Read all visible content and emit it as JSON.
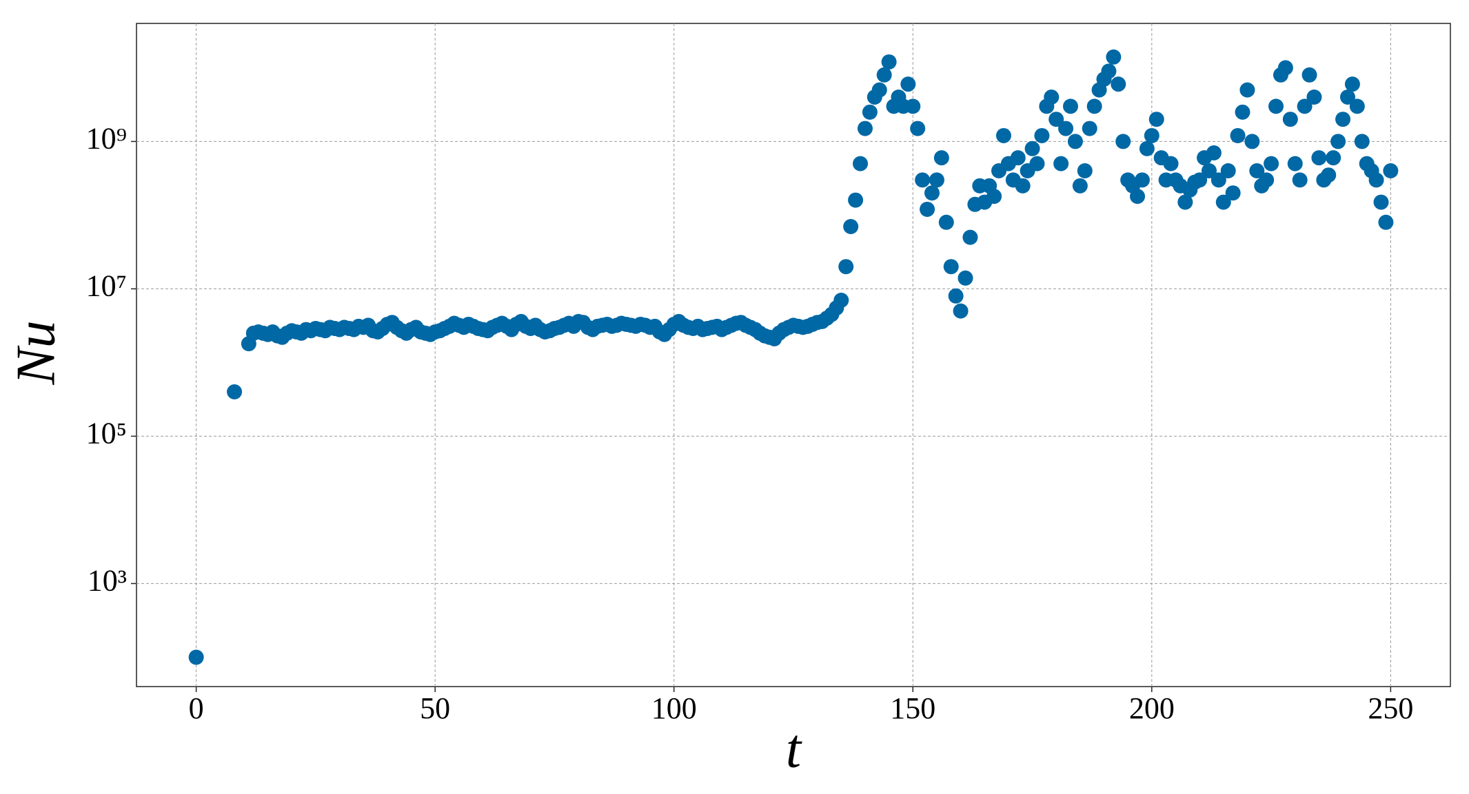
{
  "chart_data": {
    "type": "scatter",
    "x_label": "t",
    "y_label": "Nu",
    "color": "#0068a5",
    "y_scale": "log",
    "grid": true,
    "xlim": [
      -12.5,
      262.5
    ],
    "xticks": [
      0,
      50,
      100,
      150,
      200,
      250
    ],
    "ylim": [
      40,
      40000000000.0
    ],
    "yticks": [
      {
        "value": 1000,
        "label": "10³"
      },
      {
        "value": 100000,
        "label": "10⁵"
      },
      {
        "value": 10000000,
        "label": "10⁷"
      },
      {
        "value": 1000000000,
        "label": "10⁹"
      }
    ],
    "x": [
      0,
      8,
      11,
      12,
      13,
      14,
      15,
      16,
      17,
      18,
      19,
      20,
      21,
      22,
      23,
      24,
      25,
      26,
      27,
      28,
      29,
      30,
      31,
      32,
      33,
      34,
      35,
      36,
      37,
      38,
      39,
      40,
      41,
      42,
      43,
      44,
      45,
      46,
      47,
      48,
      49,
      50,
      51,
      52,
      53,
      54,
      55,
      56,
      57,
      58,
      59,
      60,
      61,
      62,
      63,
      64,
      65,
      66,
      67,
      68,
      69,
      70,
      71,
      72,
      73,
      74,
      75,
      76,
      77,
      78,
      79,
      80,
      81,
      82,
      83,
      84,
      85,
      86,
      87,
      88,
      89,
      90,
      91,
      92,
      93,
      94,
      95,
      96,
      97,
      98,
      99,
      100,
      101,
      102,
      103,
      104,
      105,
      106,
      107,
      108,
      109,
      110,
      111,
      112,
      113,
      114,
      115,
      116,
      117,
      118,
      119,
      120,
      121,
      122,
      123,
      124,
      125,
      126,
      127,
      128,
      129,
      130,
      131,
      132,
      133,
      134,
      135,
      136,
      137,
      138,
      139,
      140,
      141,
      142,
      143,
      144,
      145,
      146,
      147,
      148,
      149,
      150,
      151,
      152,
      153,
      154,
      155,
      156,
      157,
      158,
      159,
      160,
      161,
      162,
      163,
      164,
      165,
      166,
      167,
      168,
      169,
      170,
      171,
      172,
      173,
      174,
      175,
      176,
      177,
      178,
      179,
      180,
      181,
      182,
      183,
      184,
      185,
      186,
      187,
      188,
      189,
      190,
      191,
      192,
      193,
      194,
      195,
      196,
      197,
      198,
      199,
      200,
      201,
      202,
      203,
      204,
      205,
      206,
      207,
      208,
      209,
      210,
      211,
      212,
      213,
      214,
      215,
      216,
      217,
      218,
      219,
      220,
      221,
      222,
      223,
      224,
      225,
      226,
      227,
      228,
      229,
      230,
      231,
      232,
      233,
      234,
      235,
      236,
      237,
      238,
      239,
      240,
      241,
      242,
      243,
      244,
      245,
      246,
      247,
      248,
      249,
      250
    ],
    "values": [
      100,
      400000.0,
      1800000.0,
      2500000.0,
      2600000.0,
      2500000.0,
      2400000.0,
      2600000.0,
      2300000.0,
      2200000.0,
      2500000.0,
      2700000.0,
      2600000.0,
      2500000.0,
      2800000.0,
      2700000.0,
      2900000.0,
      2800000.0,
      2700000.0,
      3000000.0,
      2900000.0,
      2800000.0,
      3000000.0,
      2900000.0,
      2800000.0,
      3100000.0,
      3000000.0,
      3200000.0,
      2700000.0,
      2600000.0,
      2900000.0,
      3300000.0,
      3500000.0,
      3000000.0,
      2700000.0,
      2500000.0,
      2800000.0,
      3000000.0,
      2600000.0,
      2500000.0,
      2400000.0,
      2600000.0,
      2700000.0,
      2900000.0,
      3100000.0,
      3400000.0,
      3200000.0,
      3000000.0,
      3300000.0,
      3100000.0,
      2900000.0,
      2800000.0,
      2700000.0,
      3000000.0,
      3200000.0,
      3400000.0,
      3100000.0,
      2800000.0,
      3300000.0,
      3600000.0,
      3100000.0,
      2900000.0,
      3200000.0,
      2800000.0,
      2600000.0,
      2700000.0,
      2900000.0,
      3000000.0,
      3200000.0,
      3400000.0,
      3100000.0,
      3600000.0,
      3500000.0,
      3000000.0,
      2800000.0,
      3100000.0,
      3200000.0,
      3300000.0,
      3100000.0,
      3200000.0,
      3400000.0,
      3300000.0,
      3200000.0,
      3100000.0,
      3300000.0,
      3200000.0,
      3000000.0,
      3100000.0,
      2600000.0,
      2400000.0,
      2800000.0,
      3300000.0,
      3600000.0,
      3200000.0,
      3000000.0,
      2900000.0,
      3100000.0,
      2800000.0,
      2900000.0,
      3000000.0,
      3100000.0,
      2800000.0,
      3000000.0,
      3200000.0,
      3400000.0,
      3500000.0,
      3200000.0,
      3000000.0,
      2800000.0,
      2500000.0,
      2300000.0,
      2200000.0,
      2100000.0,
      2500000.0,
      2800000.0,
      3000000.0,
      3200000.0,
      3100000.0,
      3000000.0,
      3100000.0,
      3300000.0,
      3500000.0,
      3600000.0,
      4000000.0,
      4500000.0,
      5500000.0,
      7000000.0,
      20000000.0,
      70000000.0,
      160000000.0,
      500000000.0,
      1500000000.0,
      2500000000.0,
      4000000000.0,
      5000000000.0,
      8000000000.0,
      12000000000.0,
      3000000000.0,
      4000000000.0,
      3000000000.0,
      6000000000.0,
      3000000000.0,
      1500000000.0,
      300000000.0,
      120000000.0,
      200000000.0,
      300000000.0,
      600000000.0,
      80000000.0,
      20000000.0,
      8000000.0,
      5000000.0,
      14000000.0,
      50000000.0,
      140000000.0,
      250000000.0,
      150000000.0,
      250000000.0,
      180000000.0,
      400000000.0,
      1200000000.0,
      500000000.0,
      300000000.0,
      600000000.0,
      250000000.0,
      400000000.0,
      800000000.0,
      500000000.0,
      1200000000.0,
      3000000000.0,
      4000000000.0,
      2000000000.0,
      500000000.0,
      1500000000.0,
      3000000000.0,
      1000000000.0,
      250000000.0,
      400000000.0,
      1500000000.0,
      3000000000.0,
      5000000000.0,
      7000000000.0,
      9000000000.0,
      14000000000.0,
      6000000000.0,
      1000000000.0,
      300000000.0,
      250000000.0,
      180000000.0,
      300000000.0,
      800000000.0,
      1200000000.0,
      2000000000.0,
      600000000.0,
      300000000.0,
      500000000.0,
      300000000.0,
      250000000.0,
      150000000.0,
      220000000.0,
      280000000.0,
      300000000.0,
      600000000.0,
      400000000.0,
      700000000.0,
      300000000.0,
      150000000.0,
      400000000.0,
      200000000.0,
      1200000000.0,
      2500000000.0,
      5000000000.0,
      1000000000.0,
      400000000.0,
      250000000.0,
      300000000.0,
      500000000.0,
      3000000000.0,
      8000000000.0,
      10000000000.0,
      2000000000.0,
      500000000.0,
      300000000.0,
      3000000000.0,
      8000000000.0,
      4000000000.0,
      600000000.0,
      300000000.0,
      350000000.0,
      600000000.0,
      1000000000.0,
      2000000000.0,
      4000000000.0,
      6000000000.0,
      3000000000.0,
      1000000000.0,
      500000000.0,
      400000000.0,
      300000000.0,
      150000000.0,
      80000000.0,
      400000000.0
    ]
  }
}
